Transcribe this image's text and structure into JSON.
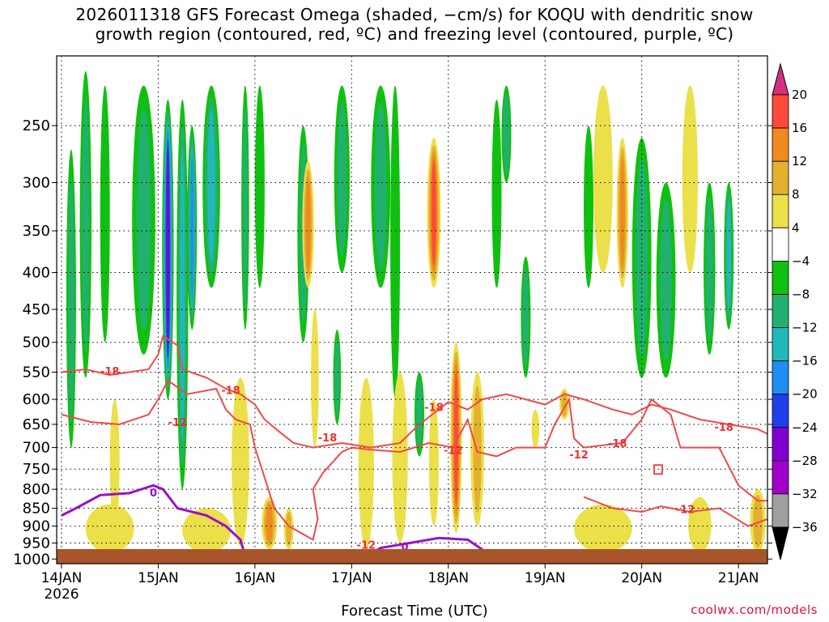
{
  "header": {
    "title_line1": "2026011318 GFS Forecast Omega (shaded, −cm/s) for KOQU with dendritic snow",
    "title_line2": "growth region (contoured, red, ºC) and freezing level (contoured, purple, ºC)"
  },
  "footer": {
    "credit": "coolwx.com/models"
  },
  "chart_data": {
    "type": "heatmap",
    "xlabel": "Forecast Time (UTC)",
    "ylabel": "",
    "x_ticks": [
      "14JAN",
      "15JAN",
      "16JAN",
      "17JAN",
      "18JAN",
      "19JAN",
      "20JAN",
      "21JAN"
    ],
    "x_year_label": "2026",
    "x_range_days_from_14JAN": [
      -0.05,
      7.3
    ],
    "y_ticks": [
      250,
      300,
      350,
      400,
      450,
      500,
      550,
      600,
      650,
      700,
      750,
      800,
      850,
      900,
      950,
      1000
    ],
    "y_scale": "log-pressure",
    "y_range_hPa": [
      200,
      1015
    ],
    "grid": true,
    "colorbar": {
      "labels": [
        "20",
        "16",
        "12",
        "8",
        "4",
        "−4",
        "−8",
        "−12",
        "−16",
        "−20",
        "−24",
        "−28",
        "−32",
        "−36"
      ],
      "colors": [
        "#d62f7d",
        "#ff4a3a",
        "#f08a20",
        "#e3b030",
        "#ece04a",
        "#ffffff",
        "#10c010",
        "#22b070",
        "#22b8b8",
        "#1e8ef0",
        "#1f3fe8",
        "#8000d0",
        "#a000c8",
        "#a0a0a0",
        "#000000"
      ]
    },
    "contour_labels_red": [
      "-18",
      "-18",
      "-12",
      "-18",
      "-12",
      "-18",
      "-12",
      "-12",
      "-18",
      "-18",
      "-12",
      "-12",
      "-12"
    ],
    "contour_labels_purple": [
      "0",
      "0"
    ],
    "omega_features": [
      {
        "t": 0.1,
        "p0": 270,
        "p1": 700,
        "w": 0.05,
        "v": -8
      },
      {
        "t": 0.25,
        "p0": 210,
        "p1": 560,
        "w": 0.06,
        "v": -9
      },
      {
        "t": 0.45,
        "p0": 220,
        "p1": 500,
        "w": 0.05,
        "v": -6
      },
      {
        "t": 0.55,
        "p0": 600,
        "p1": 900,
        "w": 0.05,
        "v": 6
      },
      {
        "t": 0.85,
        "p0": 220,
        "p1": 520,
        "w": 0.12,
        "v": -11
      },
      {
        "t": 1.1,
        "p0": 230,
        "p1": 600,
        "w": 0.06,
        "v": -24
      },
      {
        "t": 1.25,
        "p0": 230,
        "p1": 800,
        "w": 0.06,
        "v": -14
      },
      {
        "t": 1.35,
        "p0": 250,
        "p1": 480,
        "w": 0.05,
        "v": -18
      },
      {
        "t": 1.55,
        "p0": 220,
        "p1": 420,
        "w": 0.09,
        "v": -12
      },
      {
        "t": 1.9,
        "p0": 220,
        "p1": 480,
        "w": 0.04,
        "v": -8
      },
      {
        "t": 2.05,
        "p0": 220,
        "p1": 420,
        "w": 0.05,
        "v": -6
      },
      {
        "t": 1.85,
        "p0": 560,
        "p1": 960,
        "w": 0.09,
        "v": 6
      },
      {
        "t": 2.15,
        "p0": 820,
        "p1": 970,
        "w": 0.08,
        "v": 12
      },
      {
        "t": 2.35,
        "p0": 850,
        "p1": 970,
        "w": 0.05,
        "v": 8
      },
      {
        "t": 2.5,
        "p0": 250,
        "p1": 500,
        "w": 0.06,
        "v": -8
      },
      {
        "t": 2.55,
        "p0": 280,
        "p1": 420,
        "w": 0.06,
        "v": 14
      },
      {
        "t": 2.62,
        "p0": 450,
        "p1": 700,
        "w": 0.04,
        "v": 6
      },
      {
        "t": 2.85,
        "p0": 480,
        "p1": 650,
        "w": 0.04,
        "v": -10
      },
      {
        "t": 2.9,
        "p0": 220,
        "p1": 400,
        "w": 0.08,
        "v": -8
      },
      {
        "t": 3.15,
        "p0": 560,
        "p1": 970,
        "w": 0.08,
        "v": 6
      },
      {
        "t": 3.3,
        "p0": 220,
        "p1": 420,
        "w": 0.1,
        "v": -10
      },
      {
        "t": 3.45,
        "p0": 220,
        "p1": 600,
        "w": 0.05,
        "v": -6
      },
      {
        "t": 3.5,
        "p0": 550,
        "p1": 950,
        "w": 0.08,
        "v": 7
      },
      {
        "t": 3.7,
        "p0": 550,
        "p1": 720,
        "w": 0.05,
        "v": -10
      },
      {
        "t": 3.85,
        "p0": 260,
        "p1": 420,
        "w": 0.07,
        "v": 16
      },
      {
        "t": 3.85,
        "p0": 600,
        "p1": 900,
        "w": 0.05,
        "v": 6
      },
      {
        "t": 4.08,
        "p0": 500,
        "p1": 920,
        "w": 0.06,
        "v": 18
      },
      {
        "t": 4.3,
        "p0": 550,
        "p1": 900,
        "w": 0.07,
        "v": 8
      },
      {
        "t": 4.5,
        "p0": 230,
        "p1": 420,
        "w": 0.05,
        "v": -6
      },
      {
        "t": 4.6,
        "p0": 220,
        "p1": 300,
        "w": 0.05,
        "v": -8
      },
      {
        "t": 4.8,
        "p0": 380,
        "p1": 560,
        "w": 0.05,
        "v": -8
      },
      {
        "t": 4.9,
        "p0": 620,
        "p1": 700,
        "w": 0.04,
        "v": 6
      },
      {
        "t": 5.2,
        "p0": 580,
        "p1": 640,
        "w": 0.05,
        "v": 8
      },
      {
        "t": 5.45,
        "p0": 250,
        "p1": 420,
        "w": 0.05,
        "v": -6
      },
      {
        "t": 5.6,
        "p0": 220,
        "p1": 400,
        "w": 0.1,
        "v": 5
      },
      {
        "t": 5.8,
        "p0": 260,
        "p1": 420,
        "w": 0.06,
        "v": 12
      },
      {
        "t": 6.0,
        "p0": 260,
        "p1": 560,
        "w": 0.1,
        "v": -9
      },
      {
        "t": 6.25,
        "p0": 300,
        "p1": 560,
        "w": 0.1,
        "v": -11
      },
      {
        "t": 6.5,
        "p0": 220,
        "p1": 400,
        "w": 0.08,
        "v": 5
      },
      {
        "t": 6.7,
        "p0": 300,
        "p1": 520,
        "w": 0.06,
        "v": -9
      },
      {
        "t": 6.9,
        "p0": 300,
        "p1": 480,
        "w": 0.05,
        "v": -14
      },
      {
        "t": 6.6,
        "p0": 820,
        "p1": 980,
        "w": 0.12,
        "v": 6
      },
      {
        "t": 7.2,
        "p0": 800,
        "p1": 980,
        "w": 0.08,
        "v": 9
      },
      {
        "t": 0.5,
        "p0": 840,
        "p1": 980,
        "w": 0.25,
        "v": 6
      },
      {
        "t": 1.5,
        "p0": 850,
        "p1": 980,
        "w": 0.25,
        "v": 5
      },
      {
        "t": 5.6,
        "p0": 840,
        "p1": 980,
        "w": 0.3,
        "v": 5
      }
    ],
    "red_contours": [
      [
        [
          0.0,
          550
        ],
        [
          0.25,
          545
        ],
        [
          0.5,
          555
        ],
        [
          0.9,
          545
        ],
        [
          1.0,
          520
        ],
        [
          1.05,
          490
        ],
        [
          1.2,
          505
        ],
        [
          1.25,
          545
        ],
        [
          1.5,
          560
        ],
        [
          1.7,
          580
        ],
        [
          1.85,
          590
        ],
        [
          2.0,
          610
        ],
        [
          2.1,
          640
        ],
        [
          2.25,
          665
        ],
        [
          2.4,
          690
        ],
        [
          2.6,
          700
        ],
        [
          2.9,
          690
        ],
        [
          3.2,
          700
        ],
        [
          3.5,
          690
        ],
        [
          3.7,
          650
        ],
        [
          3.9,
          620
        ],
        [
          4.0,
          605
        ],
        [
          4.2,
          620
        ],
        [
          4.35,
          600
        ],
        [
          4.6,
          590
        ],
        [
          4.8,
          600
        ],
        [
          5.0,
          610
        ],
        [
          5.2,
          590
        ],
        [
          5.4,
          600
        ],
        [
          5.7,
          620
        ],
        [
          5.9,
          630
        ],
        [
          6.1,
          610
        ],
        [
          6.3,
          620
        ],
        [
          6.6,
          640
        ],
        [
          6.9,
          650
        ],
        [
          7.2,
          660
        ],
        [
          7.3,
          670
        ]
      ],
      [
        [
          0.0,
          630
        ],
        [
          0.3,
          645
        ],
        [
          0.6,
          650
        ],
        [
          0.9,
          630
        ],
        [
          1.0,
          600
        ],
        [
          1.1,
          565
        ],
        [
          1.3,
          590
        ],
        [
          1.6,
          580
        ],
        [
          1.7,
          620
        ],
        [
          1.8,
          640
        ],
        [
          1.95,
          650
        ],
        [
          2.0,
          700
        ],
        [
          2.1,
          770
        ],
        [
          2.2,
          850
        ],
        [
          2.35,
          900
        ],
        [
          2.6,
          940
        ],
        [
          2.65,
          880
        ],
        [
          2.6,
          800
        ],
        [
          2.7,
          760
        ],
        [
          2.9,
          710
        ],
        [
          3.0,
          700
        ],
        [
          3.2,
          705
        ],
        [
          3.5,
          710
        ],
        [
          3.8,
          690
        ],
        [
          4.05,
          700
        ],
        [
          4.2,
          640
        ],
        [
          4.3,
          710
        ],
        [
          4.5,
          720
        ],
        [
          4.7,
          700
        ],
        [
          5.0,
          700
        ],
        [
          5.1,
          650
        ],
        [
          5.25,
          600
        ],
        [
          5.3,
          680
        ],
        [
          5.4,
          700
        ],
        [
          5.8,
          690
        ],
        [
          6.0,
          640
        ],
        [
          6.1,
          600
        ],
        [
          6.3,
          630
        ],
        [
          6.4,
          700
        ],
        [
          6.8,
          700
        ],
        [
          7.0,
          790
        ],
        [
          7.2,
          830
        ],
        [
          7.3,
          830
        ]
      ],
      [
        [
          5.4,
          820
        ],
        [
          5.7,
          850
        ],
        [
          6.0,
          860
        ],
        [
          6.2,
          845
        ],
        [
          6.5,
          860
        ],
        [
          6.8,
          850
        ],
        [
          7.1,
          900
        ],
        [
          7.3,
          880
        ]
      ]
    ],
    "purple_contours": [
      [
        [
          0.0,
          870
        ],
        [
          0.15,
          850
        ],
        [
          0.4,
          815
        ],
        [
          0.7,
          810
        ],
        [
          0.95,
          790
        ],
        [
          1.05,
          800
        ],
        [
          1.2,
          850
        ],
        [
          1.5,
          870
        ],
        [
          1.7,
          900
        ],
        [
          1.85,
          940
        ],
        [
          1.9,
          990
        ]
      ],
      [
        [
          3.1,
          1000
        ],
        [
          3.3,
          965
        ],
        [
          3.6,
          950
        ],
        [
          3.9,
          935
        ],
        [
          4.2,
          940
        ],
        [
          4.4,
          980
        ]
      ]
    ]
  }
}
